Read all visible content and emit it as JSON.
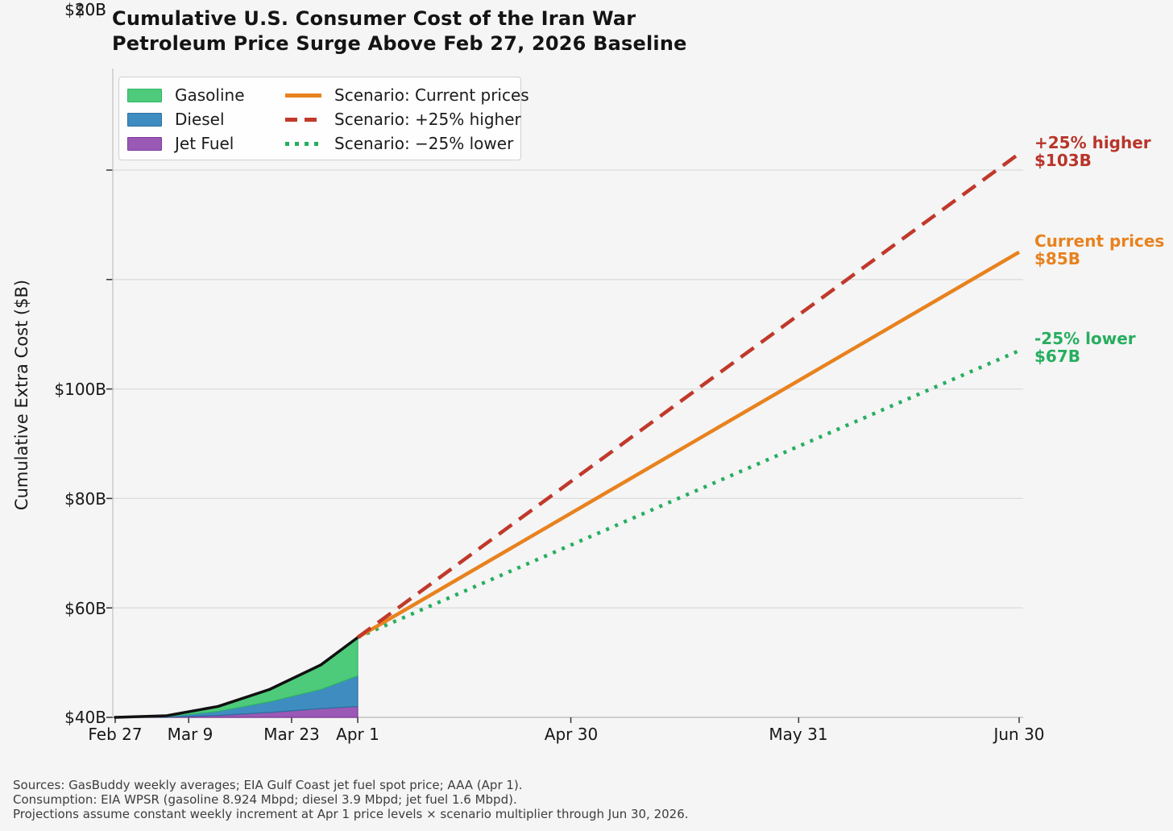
{
  "title": {
    "line1": "Cumulative U.S. Consumer Cost of the Iran War",
    "line2": "Petroleum Price Surge Above Feb 27, 2026 Baseline"
  },
  "legend": {
    "items": [
      {
        "label": "Gasoline",
        "color": "#4ecb7a"
      },
      {
        "label": "Diesel",
        "color": "#3f8dc0"
      },
      {
        "label": "Jet Fuel",
        "color": "#9b59b6"
      },
      {
        "label": "Scenario: Current prices",
        "color": "#e8821e",
        "style": "solid"
      },
      {
        "label": "Scenario: +25% higher",
        "color": "#c0392b",
        "style": "dashed"
      },
      {
        "label": "Scenario: −25% lower",
        "color": "#27ae60",
        "style": "dotted"
      }
    ]
  },
  "footnotes": [
    "Sources: GasBuddy weekly averages; EIA Gulf Coast jet fuel spot price; AAA (Apr 1).",
    "Consumption: EIA WPSR (gasoline 8.924 Mbpd; diesel 3.9 Mbpd; jet fuel 1.6 Mbpd).",
    "Projections assume constant weekly increment at Apr 1 price levels × scenario multiplier through Jun 30, 2026."
  ],
  "chart_data": {
    "type": "area",
    "title": "Cumulative U.S. Consumer Cost of the Iran War Petroleum Price Surge Above Feb 27, 2026 Baseline",
    "xlabel": "",
    "ylabel": "Cumulative Extra Cost ($B)",
    "ylim": [
      0,
      107
    ],
    "grid": "horizontal",
    "legend_position": "upper-left",
    "y_ticks": [
      {
        "label": "$100B",
        "value": 100
      },
      {
        "label": "$80B",
        "value": 80
      },
      {
        "label": "$60B",
        "value": 60
      },
      {
        "label": "$40B",
        "value": 40
      },
      {
        "label": "$20B",
        "value": 20
      },
      {
        "label": "$0B",
        "value": 0
      }
    ],
    "x_ticks": [
      {
        "label": "Feb 27",
        "day": 0
      },
      {
        "label": "Mar 9",
        "day": 10
      },
      {
        "label": "Mar 23",
        "day": 24
      },
      {
        "label": "Apr 1",
        "day": 33
      },
      {
        "label": "Apr 30",
        "day": 62
      },
      {
        "label": "May 31",
        "day": 93
      },
      {
        "label": "Jun 30",
        "day": 123
      }
    ],
    "x_span_days": 123,
    "stacked_series": {
      "x_days": [
        0,
        7,
        14,
        21,
        28,
        33
      ],
      "x_labels": [
        "Feb 27",
        "Mar 6",
        "Mar 13",
        "Mar 20",
        "Mar 27",
        "Apr 1"
      ],
      "series": [
        {
          "name": "Jet Fuel",
          "color": "#9b59b6",
          "edge": "#7d3c98",
          "values": [
            0,
            0.05,
            0.35,
            0.9,
            1.6,
            2.0
          ]
        },
        {
          "name": "Diesel",
          "color": "#3f8dc0",
          "edge": "#2c6f9e",
          "values": [
            0,
            0.1,
            0.75,
            1.95,
            3.5,
            5.6
          ]
        },
        {
          "name": "Gasoline",
          "color": "#4ecb7a",
          "edge": "#2fb569",
          "values": [
            0,
            0.15,
            0.9,
            2.25,
            4.5,
            7.0
          ]
        }
      ],
      "total": [
        0,
        0.3,
        2.0,
        5.1,
        9.6,
        14.6
      ],
      "total_line_color": "#111111"
    },
    "projections": {
      "start_day": 33,
      "start_label": "Apr 1",
      "start_value_billion": 14.6,
      "end_day": 123,
      "end_label": "Jun 30",
      "lines": [
        {
          "name": "Scenario: −25% lower",
          "style": "dotted",
          "color": "#27ae60",
          "end_value": 67
        },
        {
          "name": "Scenario: Current prices",
          "style": "solid",
          "color": "#e8821e",
          "end_value": 85
        },
        {
          "name": "Scenario: +25% higher",
          "style": "dashed",
          "color": "#c0392b",
          "end_value": 103
        }
      ]
    },
    "annotations": [
      {
        "line1": "+25% higher",
        "line2": "$103B",
        "color": "#b8352a"
      },
      {
        "line1": "Current prices",
        "line2": "$85B",
        "color": "#e8821e"
      },
      {
        "line1": "-25% lower",
        "line2": "$67B",
        "color": "#27ae60"
      }
    ],
    "colors": {
      "background": "#f5f5f5",
      "gridline": "#dcdcdc",
      "spine": "#c4c4c4",
      "tick_mark": "#333333"
    }
  }
}
